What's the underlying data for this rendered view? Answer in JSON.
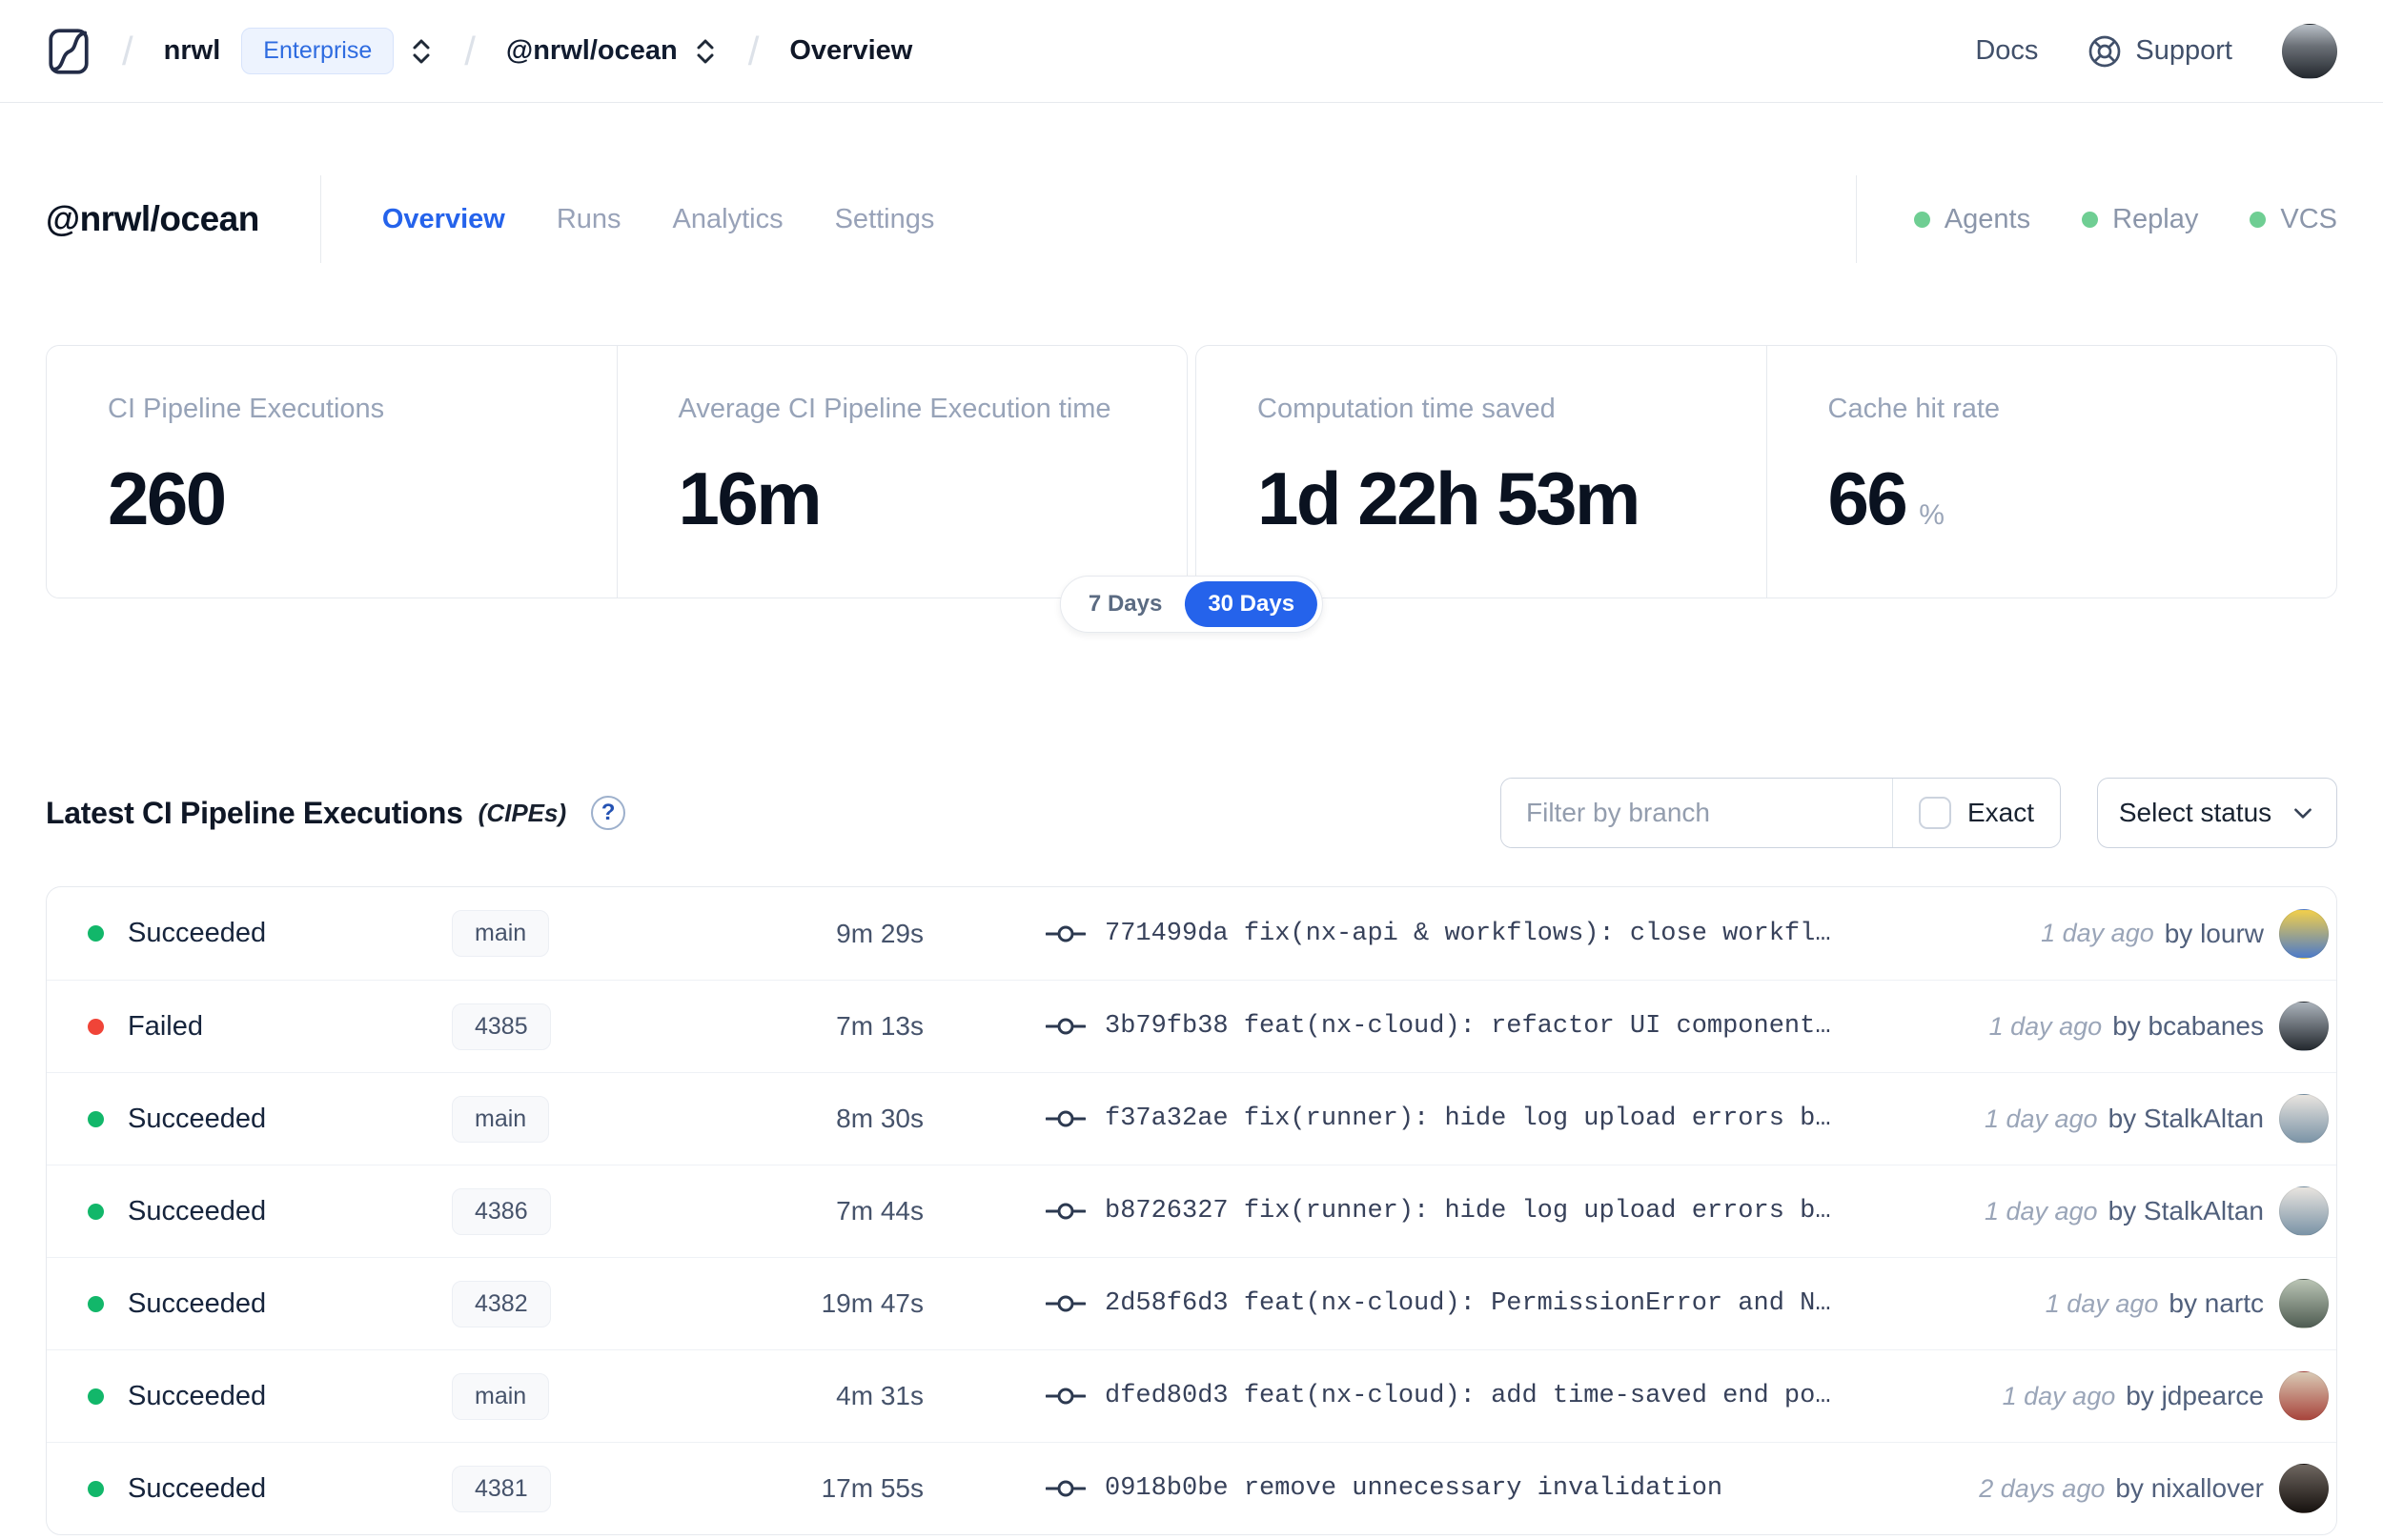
{
  "navbar": {
    "org": "nrwl",
    "org_badge": "Enterprise",
    "workspace": "@nrwl/ocean",
    "page": "Overview",
    "docs_label": "Docs",
    "support_label": "Support"
  },
  "header": {
    "title": "@nrwl/ocean",
    "tabs": [
      {
        "label": "Overview",
        "active": true
      },
      {
        "label": "Runs",
        "active": false
      },
      {
        "label": "Analytics",
        "active": false
      },
      {
        "label": "Settings",
        "active": false
      }
    ],
    "integrations": [
      {
        "label": "Agents"
      },
      {
        "label": "Replay"
      },
      {
        "label": "VCS"
      }
    ]
  },
  "stats": [
    {
      "label": "CI Pipeline Executions",
      "value": "260",
      "suffix": ""
    },
    {
      "label": "Average CI Pipeline Execution time",
      "value": "16m",
      "suffix": ""
    },
    {
      "label": "Computation time saved",
      "value": "1d 22h 53m",
      "suffix": ""
    },
    {
      "label": "Cache hit rate",
      "value": "66",
      "suffix": "%"
    }
  ],
  "range_toggle": {
    "options": [
      "7 Days",
      "30 Days"
    ],
    "selected": "30 Days"
  },
  "cipes": {
    "title": "Latest CI Pipeline Executions",
    "title_suffix": "(CIPEs)",
    "filter_placeholder": "Filter by branch",
    "exact_label": "Exact",
    "status_select_label": "Select status",
    "rows": [
      {
        "status": "Succeeded",
        "status_color": "green",
        "branch": "main",
        "duration": "9m 29s",
        "commit_hash": "771499da",
        "commit_message": "fix(nx-api & workflows): close workfl…",
        "time": "1 day ago",
        "author": "by lourw",
        "avatar_colors": [
          "#f2cf4b",
          "#4d7bc9"
        ]
      },
      {
        "status": "Failed",
        "status_color": "red",
        "branch": "4385",
        "duration": "7m 13s",
        "commit_hash": "3b79fb38",
        "commit_message": "feat(nx-cloud): refactor UI component…",
        "time": "1 day ago",
        "author": "by bcabanes",
        "avatar_colors": [
          "#aab2ba",
          "#23282e"
        ]
      },
      {
        "status": "Succeeded",
        "status_color": "green",
        "branch": "main",
        "duration": "8m 30s",
        "commit_hash": "f37a32ae",
        "commit_message": "fix(runner): hide log upload errors b…",
        "time": "1 day ago",
        "author": "by StalkAltan",
        "avatar_colors": [
          "#e8e4df",
          "#7a93a6"
        ]
      },
      {
        "status": "Succeeded",
        "status_color": "green",
        "branch": "4386",
        "duration": "7m 44s",
        "commit_hash": "b8726327",
        "commit_message": "fix(runner): hide log upload errors b…",
        "time": "1 day ago",
        "author": "by StalkAltan",
        "avatar_colors": [
          "#e8e4df",
          "#7a93a6"
        ]
      },
      {
        "status": "Succeeded",
        "status_color": "green",
        "branch": "4382",
        "duration": "19m 47s",
        "commit_hash": "2d58f6d3",
        "commit_message": "feat(nx-cloud): PermissionError and N…",
        "time": "1 day ago",
        "author": "by nartc",
        "avatar_colors": [
          "#b9c4b4",
          "#4f5c52"
        ]
      },
      {
        "status": "Succeeded",
        "status_color": "green",
        "branch": "main",
        "duration": "4m 31s",
        "commit_hash": "dfed80d3",
        "commit_message": "feat(nx-cloud): add time-saved end po…",
        "time": "1 day ago",
        "author": "by jdpearce",
        "avatar_colors": [
          "#d9c9b4",
          "#a8443c"
        ]
      },
      {
        "status": "Succeeded",
        "status_color": "green",
        "branch": "4381",
        "duration": "17m 55s",
        "commit_hash": "0918b0be",
        "commit_message": "remove unnecessary invalidation",
        "time": "2 days ago",
        "author": "by nixallover",
        "avatar_colors": [
          "#6e6660",
          "#17120f"
        ]
      }
    ]
  },
  "colors": {
    "accent_blue": "#2563eb",
    "success_green": "#12b76a",
    "failure_red": "#f04438",
    "integration_green": "#6fce93"
  }
}
